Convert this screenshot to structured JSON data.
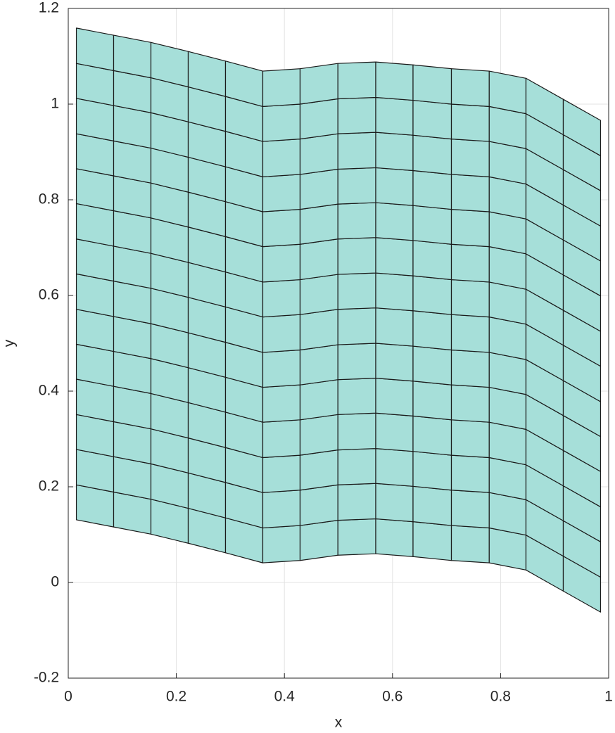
{
  "chart_data": {
    "type": "mesh",
    "xlabel": "x",
    "ylabel": "y",
    "x": [
      0.015,
      0.084,
      0.153,
      0.222,
      0.291,
      0.36,
      0.429,
      0.499,
      0.569,
      0.638,
      0.709,
      0.779,
      0.847,
      0.916,
      0.985
    ],
    "y": [
      [
        0.131,
        0.116,
        0.101,
        0.082,
        0.062,
        0.041,
        0.046,
        0.057,
        0.06,
        0.054,
        0.046,
        0.041,
        0.026,
        -0.018,
        -0.062
      ],
      [
        0.204,
        0.189,
        0.174,
        0.155,
        0.135,
        0.114,
        0.119,
        0.13,
        0.133,
        0.127,
        0.119,
        0.114,
        0.099,
        0.055,
        0.011
      ],
      [
        0.278,
        0.263,
        0.248,
        0.229,
        0.209,
        0.188,
        0.193,
        0.204,
        0.207,
        0.201,
        0.193,
        0.188,
        0.173,
        0.129,
        0.085
      ],
      [
        0.351,
        0.336,
        0.321,
        0.302,
        0.282,
        0.261,
        0.266,
        0.277,
        0.28,
        0.274,
        0.266,
        0.261,
        0.246,
        0.202,
        0.158
      ],
      [
        0.425,
        0.41,
        0.395,
        0.376,
        0.356,
        0.335,
        0.34,
        0.351,
        0.354,
        0.348,
        0.34,
        0.335,
        0.32,
        0.276,
        0.232
      ],
      [
        0.498,
        0.483,
        0.468,
        0.449,
        0.429,
        0.408,
        0.413,
        0.424,
        0.427,
        0.421,
        0.413,
        0.408,
        0.393,
        0.349,
        0.305
      ],
      [
        0.571,
        0.556,
        0.541,
        0.522,
        0.502,
        0.481,
        0.486,
        0.497,
        0.5,
        0.494,
        0.486,
        0.481,
        0.466,
        0.422,
        0.378
      ],
      [
        0.645,
        0.63,
        0.615,
        0.596,
        0.576,
        0.555,
        0.56,
        0.571,
        0.574,
        0.568,
        0.56,
        0.555,
        0.54,
        0.496,
        0.452
      ],
      [
        0.718,
        0.703,
        0.688,
        0.669,
        0.649,
        0.628,
        0.633,
        0.644,
        0.647,
        0.641,
        0.633,
        0.628,
        0.613,
        0.569,
        0.525
      ],
      [
        0.792,
        0.777,
        0.762,
        0.743,
        0.723,
        0.702,
        0.707,
        0.718,
        0.721,
        0.715,
        0.707,
        0.702,
        0.687,
        0.643,
        0.599
      ],
      [
        0.865,
        0.85,
        0.835,
        0.816,
        0.796,
        0.775,
        0.78,
        0.791,
        0.794,
        0.788,
        0.78,
        0.775,
        0.76,
        0.716,
        0.672
      ],
      [
        0.938,
        0.923,
        0.908,
        0.889,
        0.869,
        0.848,
        0.853,
        0.864,
        0.867,
        0.861,
        0.853,
        0.848,
        0.833,
        0.789,
        0.745
      ],
      [
        1.012,
        0.997,
        0.982,
        0.963,
        0.943,
        0.922,
        0.927,
        0.938,
        0.941,
        0.935,
        0.927,
        0.922,
        0.907,
        0.863,
        0.819
      ],
      [
        1.085,
        1.07,
        1.055,
        1.036,
        1.016,
        0.995,
        1.0,
        1.011,
        1.014,
        1.008,
        1.0,
        0.995,
        0.98,
        0.936,
        0.892
      ],
      [
        1.159,
        1.144,
        1.129,
        1.11,
        1.09,
        1.069,
        1.074,
        1.085,
        1.088,
        1.082,
        1.074,
        1.069,
        1.054,
        1.01,
        0.966
      ]
    ],
    "color": "#a6dfd9",
    "edge_color": "#1a1a1a",
    "xlim": [
      0,
      1
    ],
    "ylim": [
      -0.2,
      1.2
    ],
    "xticks": [
      0,
      0.2,
      0.4,
      0.6,
      0.8,
      1
    ],
    "yticks": [
      -0.2,
      0,
      0.2,
      0.4,
      0.6,
      0.8,
      1,
      1.2
    ],
    "grid": true
  }
}
